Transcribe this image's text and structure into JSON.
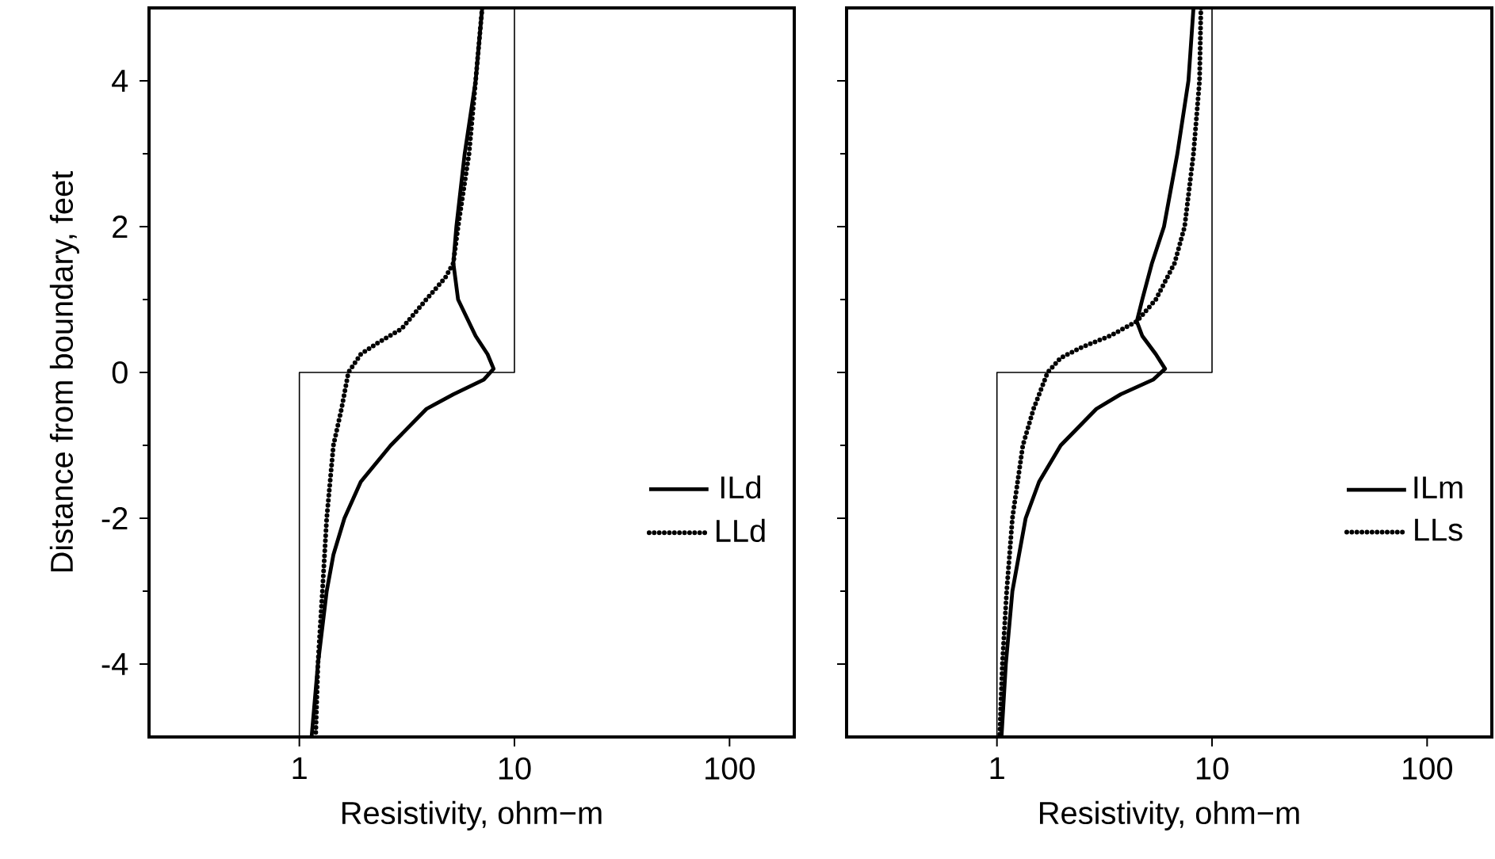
{
  "chart_data": [
    {
      "type": "line",
      "xlabel": "Resistivity, ohm−m",
      "ylabel": "Distance from boundary, feet",
      "log": "x",
      "xlim": [
        0.2,
        200
      ],
      "ylim": [
        -5,
        5
      ],
      "xticks": [
        1,
        10,
        100
      ],
      "yticks": [
        -4,
        -2,
        0,
        2,
        4
      ],
      "grid": false,
      "legend": "right",
      "marker": "none",
      "series": [
        {
          "color": "#000000",
          "line_style": "solid",
          "x": [
            1,
            1,
            10,
            10
          ],
          "values": [
            -5,
            0,
            0,
            5
          ]
        },
        {
          "name": "ILd",
          "color": "#000000",
          "line_style": "solid",
          "x": [
            7.08,
            6.6,
            5.87,
            5.37,
            5.2,
            5.47,
            6.6,
            7.5,
            8.0,
            7.2,
            5.2,
            3.9,
            2.66,
            1.93,
            1.62,
            1.44,
            1.34,
            1.22,
            1.14
          ],
          "values": [
            5,
            4,
            3,
            2,
            1.5,
            1,
            0.5,
            0.25,
            0.05,
            -0.1,
            -0.3,
            -0.5,
            -1,
            -1.5,
            -2,
            -2.5,
            -3,
            -4,
            -5
          ]
        },
        {
          "name": "LLd",
          "color": "#000000",
          "line_style": "dotted",
          "x": [
            7.08,
            6.6,
            6.15,
            5.47,
            5.2,
            4.77,
            3.89,
            2.99,
            2.3,
            1.93,
            1.69,
            1.57,
            1.44,
            1.34,
            1.28,
            1.22,
            1.19
          ],
          "values": [
            5,
            4,
            3,
            2,
            1.5,
            1.3,
            1,
            0.6,
            0.4,
            0.25,
            0,
            -0.5,
            -1,
            -2,
            -3,
            -4,
            -5
          ]
        }
      ]
    },
    {
      "type": "line",
      "xlabel": "Resistivity, ohm−m",
      "log": "x",
      "xlim": [
        0.2,
        200
      ],
      "ylim": [
        -5,
        5
      ],
      "xticks": [
        1,
        10,
        100
      ],
      "yticks": [
        -4,
        -2,
        0,
        2,
        4
      ],
      "tick_labels": "x",
      "grid": false,
      "legend": "right",
      "marker": "none",
      "series": [
        {
          "color": "#000000",
          "line_style": "solid",
          "x": [
            1,
            1,
            10,
            10
          ],
          "values": [
            -5,
            0,
            0,
            5
          ]
        },
        {
          "name": "ILm",
          "color": "#000000",
          "line_style": "solid",
          "x": [
            8.2,
            7.77,
            6.9,
            5.98,
            5.26,
            4.74,
            4.47,
            4.74,
            5.48,
            6.05,
            5.32,
            3.76,
            2.9,
            1.98,
            1.57,
            1.36,
            1.18,
            1.1,
            1.05
          ],
          "values": [
            5,
            4,
            3,
            2,
            1.5,
            1,
            0.7,
            0.5,
            0.25,
            0.05,
            -0.1,
            -0.3,
            -0.5,
            -1,
            -1.5,
            -2,
            -3,
            -4,
            -5
          ]
        },
        {
          "name": "LLs",
          "color": "#000000",
          "line_style": "dotted",
          "x": [
            8.88,
            8.75,
            8.2,
            7.46,
            6.7,
            5.48,
            4.47,
            3.35,
            2.5,
            1.98,
            1.72,
            1.48,
            1.32,
            1.18,
            1.11,
            1.06,
            1.03
          ],
          "values": [
            5,
            4,
            3,
            2,
            1.5,
            1,
            0.7,
            0.5,
            0.35,
            0.2,
            0,
            -0.5,
            -1,
            -2,
            -3,
            -4,
            -5
          ]
        }
      ]
    }
  ]
}
